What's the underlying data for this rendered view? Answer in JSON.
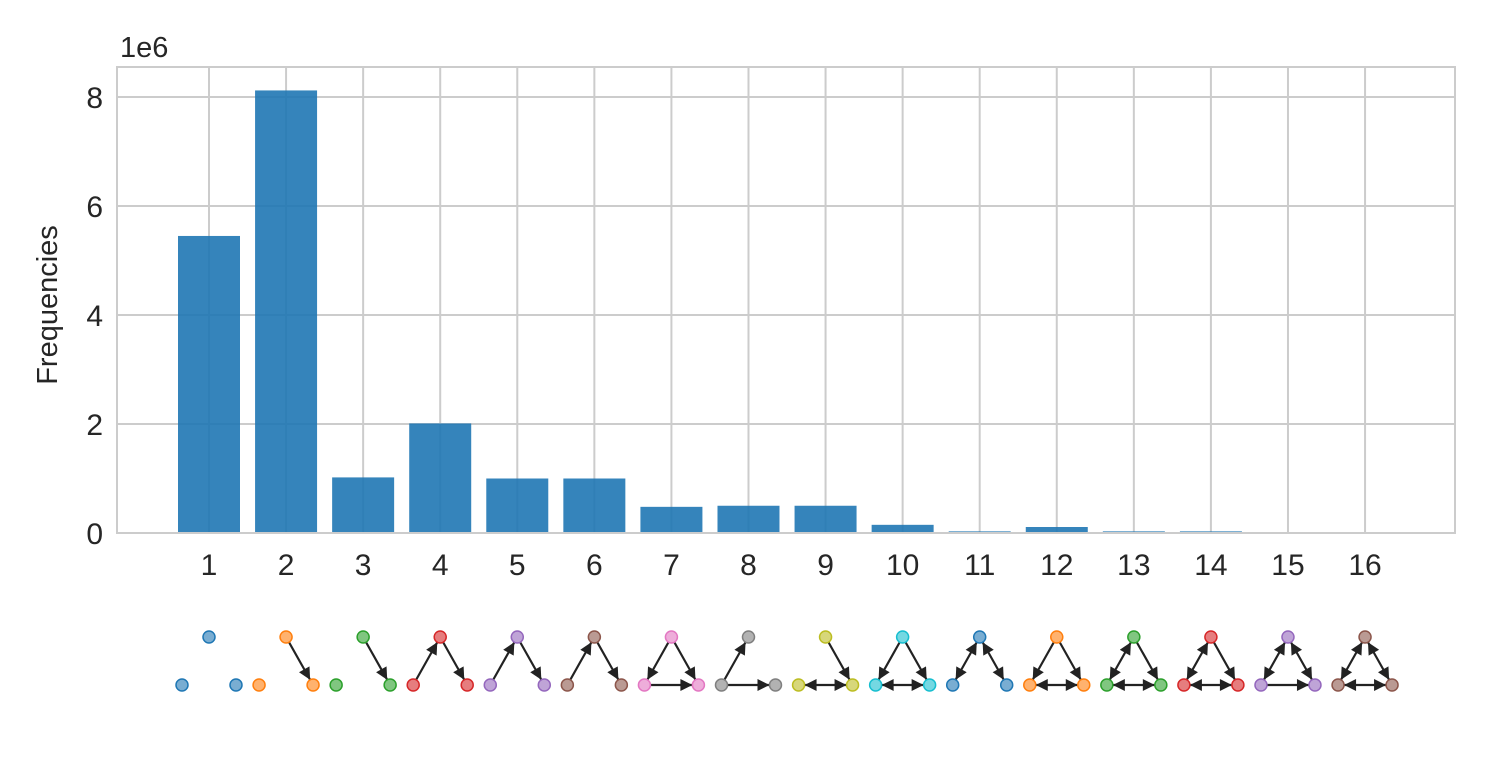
{
  "chart_data": {
    "type": "bar",
    "categories": [
      "1",
      "2",
      "3",
      "4",
      "5",
      "6",
      "7",
      "8",
      "9",
      "10",
      "11",
      "12",
      "13",
      "14",
      "15",
      "16"
    ],
    "values": [
      5450000,
      8120000,
      1020000,
      2010000,
      1000000,
      1000000,
      480000,
      500000,
      500000,
      150000,
      30000,
      110000,
      30000,
      30000,
      5000,
      3000
    ],
    "ylabel": "Frequencies",
    "y_offset_label": "1e6",
    "yticks": [
      0,
      2,
      4,
      6,
      8
    ],
    "ylim": [
      0,
      8.55
    ],
    "grid": true,
    "bar_color": "#1f77b4",
    "motif_colors": [
      "#1f77b4",
      "#ff7f0e",
      "#2ca02c",
      "#d62728",
      "#9467bd",
      "#8c564b",
      "#e377c2",
      "#7f7f7f",
      "#bcbd22",
      "#17becf",
      "#1f77b4",
      "#ff7f0e",
      "#2ca02c",
      "#d62728",
      "#9467bd",
      "#8c564b"
    ],
    "motifs_description": "triad motif glyphs drawn below each category (1-16)"
  }
}
